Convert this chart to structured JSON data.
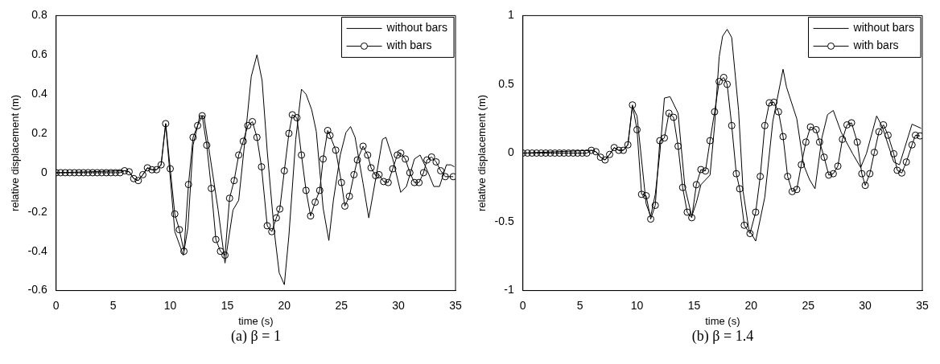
{
  "chart_data": [
    {
      "type": "line",
      "xlabel": "time (s)",
      "ylabel": "relative displacement (m)",
      "xlim": [
        0,
        35
      ],
      "xticks": [
        0,
        5,
        10,
        15,
        20,
        25,
        30,
        35
      ],
      "ylim": [
        -0.6,
        0.8
      ],
      "yticks": [
        -0.6,
        -0.4,
        -0.2,
        0,
        0.2,
        0.4,
        0.6,
        0.8
      ],
      "grid": false,
      "legend": "top right",
      "annotations": [
        "(a) β = 1"
      ],
      "series": [
        {
          "name": "without bars",
          "color": "#000000",
          "marker": "none",
          "x": [
            0,
            6,
            6.4,
            6.8,
            7.2,
            7.6,
            8,
            8.4,
            8.8,
            9.2,
            9.6,
            10.4,
            11.15,
            11.55,
            12,
            12.6,
            12.95,
            14.2,
            14.8,
            15.5,
            16,
            16.6,
            17.1,
            17.6,
            18.05,
            18.5,
            19.1,
            19.55,
            20,
            20.4,
            21,
            21.5,
            21.9,
            22.4,
            22.8,
            23.4,
            23.9,
            24.3,
            24.9,
            25.4,
            25.8,
            26.2,
            26.9,
            27.4,
            28.1,
            28.6,
            28.9,
            29.5,
            30.2,
            30.7,
            31.4,
            31.9,
            32.5,
            33.1,
            33.6,
            34.2,
            34.6,
            34.9
          ],
          "values": [
            0,
            0.01,
            0.005,
            -0.03,
            -0.04,
            -0.01,
            0.025,
            0.015,
            0.015,
            0.04,
            0.25,
            -0.3,
            -0.42,
            -0.28,
            0.14,
            0.29,
            0.29,
            -0.19,
            -0.46,
            -0.19,
            -0.14,
            0.195,
            0.49,
            0.6,
            0.47,
            0.11,
            -0.29,
            -0.51,
            -0.57,
            -0.32,
            0.17,
            0.425,
            0.4,
            0.32,
            0.21,
            -0.18,
            -0.345,
            -0.14,
            0.09,
            0.205,
            0.235,
            0.18,
            -0.055,
            -0.23,
            0,
            0.17,
            0.18,
            0.07,
            -0.1,
            -0.07,
            0.07,
            0.09,
            0.015,
            -0.07,
            -0.07,
            0.04,
            0.04,
            0.03
          ]
        },
        {
          "name": "with bars",
          "color": "#000000",
          "marker": "circle",
          "x": [
            0,
            0.4,
            0.8,
            1.2,
            1.6,
            2,
            2.4,
            2.8,
            3.2,
            3.6,
            4,
            4.4,
            4.8,
            5.2,
            5.6,
            6,
            6.4,
            6.8,
            7.2,
            7.6,
            8,
            8.4,
            8.8,
            9.2,
            9.6,
            10,
            10.4,
            10.8,
            11.2,
            11.6,
            12,
            12.4,
            12.8,
            13.2,
            13.6,
            14,
            14.4,
            14.8,
            15.2,
            15.6,
            16,
            16.4,
            16.8,
            17.2,
            17.6,
            18,
            18.5,
            18.9,
            19.3,
            19.6,
            20,
            20.4,
            20.7,
            21.1,
            21.5,
            21.9,
            22.3,
            22.7,
            23.1,
            23.4,
            23.8,
            24,
            24.5,
            25,
            25.3,
            25.7,
            26.1,
            26.4,
            26.9,
            27.3,
            27.6,
            28,
            28.3,
            28.7,
            29.1,
            29.5,
            29.9,
            30.2,
            30.6,
            31,
            31.4,
            31.8,
            32.2,
            32.5,
            32.9,
            33.3,
            33.7,
            34.1,
            34.8
          ],
          "values": [
            0,
            0,
            0,
            0,
            0,
            0,
            0,
            0,
            0,
            0,
            0,
            0,
            0,
            0,
            0,
            0.01,
            0.005,
            -0.03,
            -0.04,
            -0.01,
            0.025,
            0.015,
            0.015,
            0.04,
            0.25,
            0.02,
            -0.21,
            -0.29,
            -0.4,
            -0.06,
            0.18,
            0.24,
            0.29,
            0.14,
            -0.08,
            -0.34,
            -0.4,
            -0.42,
            -0.13,
            -0.04,
            0.09,
            0.16,
            0.24,
            0.26,
            0.18,
            0.03,
            -0.27,
            -0.3,
            -0.23,
            -0.185,
            0.01,
            0.2,
            0.295,
            0.28,
            0.09,
            -0.09,
            -0.22,
            -0.15,
            -0.09,
            0.07,
            0.215,
            0.19,
            0.115,
            -0.05,
            -0.17,
            -0.12,
            -0.01,
            0.065,
            0.135,
            0.09,
            0.025,
            -0.015,
            -0.01,
            -0.045,
            -0.05,
            0.02,
            0.09,
            0.1,
            0.07,
            0,
            -0.05,
            -0.05,
            0,
            0.065,
            0.08,
            0.055,
            0.01,
            -0.02,
            -0.02
          ]
        }
      ]
    },
    {
      "type": "line",
      "xlabel": "time (s)",
      "ylabel": "relative displacement (m)",
      "xlim": [
        0,
        35
      ],
      "xticks": [
        0,
        5,
        10,
        15,
        20,
        25,
        30,
        35
      ],
      "ylim": [
        -1,
        1
      ],
      "yticks": [
        -1,
        -0.5,
        0,
        0.5,
        1
      ],
      "grid": false,
      "legend": "top right",
      "annotations": [
        "(b) β = 1.4"
      ],
      "series": [
        {
          "name": "without bars",
          "color": "#000000",
          "marker": "none",
          "x": [
            0,
            6,
            6.4,
            6.8,
            7.2,
            7.6,
            8,
            8.4,
            8.8,
            9.2,
            9.6,
            10,
            10.8,
            11.2,
            11.6,
            12,
            12.4,
            12.9,
            13.6,
            14.2,
            14.8,
            15.2,
            15.6,
            16.4,
            16.8,
            17.2,
            17.5,
            17.9,
            18.3,
            18.9,
            19.3,
            19.8,
            20.4,
            21.2,
            21.9,
            22.8,
            23.1,
            24,
            24.6,
            25.1,
            25.6,
            26.2,
            26.7,
            27.2,
            27.9,
            28.9,
            29.6,
            30.1,
            31,
            31.5,
            32.5,
            33,
            34.1,
            34.9
          ],
          "values": [
            0,
            0.02,
            0.01,
            -0.03,
            -0.05,
            -0.01,
            0.04,
            0.02,
            0.02,
            0.06,
            0.34,
            0.27,
            -0.37,
            -0.46,
            -0.3,
            0,
            0.4,
            0.41,
            0.29,
            -0.25,
            -0.46,
            -0.36,
            -0.23,
            -0.16,
            0.2,
            0.7,
            0.85,
            0.9,
            0.84,
            0.31,
            -0.28,
            -0.555,
            -0.64,
            -0.32,
            0.23,
            0.61,
            0.48,
            0.25,
            -0.085,
            -0.19,
            -0.26,
            0.11,
            0.28,
            0.31,
            0.15,
            -0.005,
            -0.105,
            -0.005,
            0.27,
            0.19,
            -0.065,
            -0.085,
            0.21,
            0.18
          ]
        },
        {
          "name": "with bars",
          "color": "#000000",
          "marker": "circle",
          "x": [
            0,
            0.4,
            0.8,
            1.2,
            1.6,
            2,
            2.4,
            2.8,
            3.2,
            3.6,
            4,
            4.4,
            4.8,
            5.2,
            5.6,
            6,
            6.4,
            6.8,
            7.2,
            7.6,
            8,
            8.4,
            8.8,
            9.2,
            9.6,
            10,
            10.4,
            10.8,
            11.2,
            11.6,
            12,
            12.4,
            12.8,
            13.2,
            13.6,
            14,
            14.4,
            14.8,
            15.2,
            15.6,
            16,
            16.4,
            16.8,
            17.2,
            17.6,
            17.9,
            18.3,
            18.7,
            19,
            19.4,
            19.9,
            20.4,
            20.8,
            21.2,
            21.6,
            22,
            22.4,
            22.8,
            23.2,
            23.6,
            24,
            24.4,
            24.8,
            25.2,
            25.7,
            26,
            26.4,
            26.8,
            27.2,
            27.6,
            28,
            28.4,
            28.8,
            29.3,
            29.7,
            30,
            30.4,
            30.8,
            31.2,
            31.6,
            32,
            32.5,
            32.8,
            33.2,
            33.6,
            34.1,
            34.4,
            34.8
          ],
          "values": [
            0,
            0,
            0,
            0,
            0,
            0,
            0,
            0,
            0,
            0,
            0,
            0,
            0,
            0,
            0,
            0.02,
            0.01,
            -0.03,
            -0.05,
            -0.01,
            0.04,
            0.02,
            0.02,
            0.06,
            0.35,
            0.17,
            -0.3,
            -0.31,
            -0.48,
            -0.38,
            0.09,
            0.11,
            0.29,
            0.26,
            0.05,
            -0.25,
            -0.43,
            -0.47,
            -0.23,
            -0.12,
            -0.13,
            0.09,
            0.3,
            0.52,
            0.55,
            0.5,
            0.2,
            -0.15,
            -0.26,
            -0.525,
            -0.585,
            -0.43,
            -0.17,
            0.2,
            0.365,
            0.37,
            0.3,
            0.12,
            -0.17,
            -0.28,
            -0.265,
            -0.085,
            0.08,
            0.19,
            0.17,
            0.08,
            -0.03,
            -0.16,
            -0.15,
            -0.095,
            0.1,
            0.205,
            0.22,
            0.08,
            -0.15,
            -0.235,
            -0.15,
            0.005,
            0.155,
            0.205,
            0.13,
            -0.005,
            -0.125,
            -0.145,
            -0.065,
            0.06,
            0.13,
            0.125
          ]
        }
      ]
    }
  ]
}
